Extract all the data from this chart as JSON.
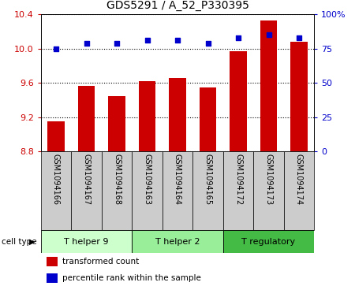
{
  "title": "GDS5291 / A_52_P330395",
  "samples": [
    "GSM1094166",
    "GSM1094167",
    "GSM1094168",
    "GSM1094163",
    "GSM1094164",
    "GSM1094165",
    "GSM1094172",
    "GSM1094173",
    "GSM1094174"
  ],
  "bar_values": [
    9.15,
    9.57,
    9.45,
    9.62,
    9.66,
    9.55,
    9.97,
    10.33,
    10.08
  ],
  "dot_values": [
    75,
    79,
    79,
    81,
    81,
    79,
    83,
    85,
    83
  ],
  "ylim_left": [
    8.8,
    10.4
  ],
  "ylim_right": [
    0,
    100
  ],
  "yticks_left": [
    8.8,
    9.2,
    9.6,
    10.0,
    10.4
  ],
  "yticks_right": [
    0,
    25,
    50,
    75,
    100
  ],
  "ytick_labels_right": [
    "0",
    "25",
    "50",
    "75",
    "100%"
  ],
  "bar_color": "#cc0000",
  "dot_color": "#0000cc",
  "grid_color": "#000000",
  "cell_groups": [
    {
      "label": "T helper 9",
      "span": [
        0,
        2
      ],
      "color": "#ccffcc"
    },
    {
      "label": "T helper 2",
      "span": [
        3,
        5
      ],
      "color": "#99ee99"
    },
    {
      "label": "T regulatory",
      "span": [
        6,
        8
      ],
      "color": "#44bb44"
    }
  ],
  "cell_type_label": "cell type",
  "legend_bar_label": "transformed count",
  "legend_dot_label": "percentile rank within the sample",
  "tick_bg_color": "#cccccc",
  "bar_min": 8.8
}
